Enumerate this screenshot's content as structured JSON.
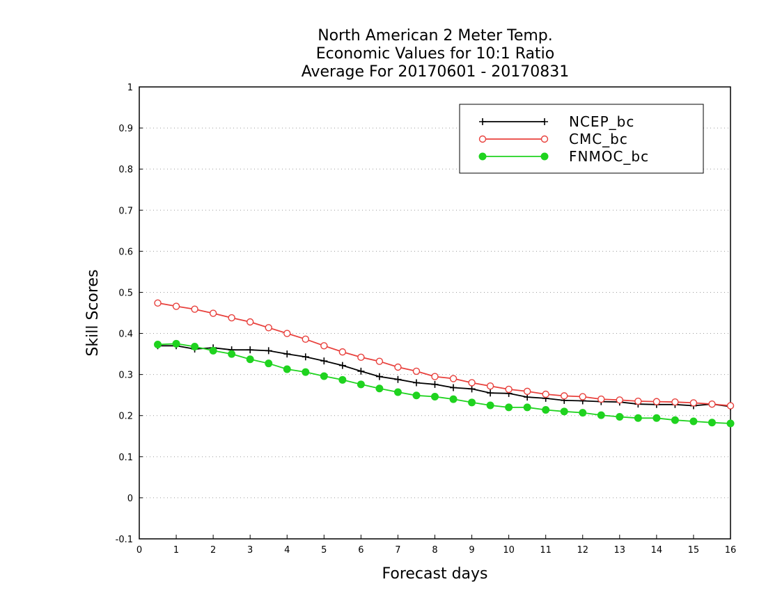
{
  "chart_data": {
    "type": "line",
    "title_lines": [
      "North American 2 Meter Temp.",
      "Economic Values for 10:1 Ratio",
      "Average For 20170601 - 20170831"
    ],
    "xlabel": "Forecast days",
    "ylabel": "Skill Scores",
    "xlim": [
      0,
      16
    ],
    "ylim": [
      -0.1,
      1
    ],
    "x_ticks": [
      0,
      1,
      2,
      3,
      4,
      5,
      6,
      7,
      8,
      9,
      10,
      11,
      12,
      13,
      14,
      15,
      16
    ],
    "x_tick_labels": [
      "0",
      "1",
      "2",
      "3",
      "4",
      "5",
      "6",
      "7",
      "8",
      "9",
      "10",
      "11",
      "12",
      "13",
      "14",
      "15",
      "16"
    ],
    "y_ticks": [
      -0.1,
      0,
      0.1,
      0.2,
      0.3,
      0.4,
      0.5,
      0.6,
      0.7,
      0.8,
      0.9,
      1
    ],
    "y_tick_labels": [
      "-0.1",
      "0",
      "0.1",
      "0.2",
      "0.3",
      "0.4",
      "0.5",
      "0.6",
      "0.7",
      "0.8",
      "0.9",
      "1"
    ],
    "grid": "horizontal-dotted",
    "legend_position": "top-right",
    "x": [
      0.5,
      1,
      1.5,
      2,
      2.5,
      3,
      3.5,
      4,
      4.5,
      5,
      5.5,
      6,
      6.5,
      7,
      7.5,
      8,
      8.5,
      9,
      9.5,
      10,
      10.5,
      11,
      11.5,
      12,
      12.5,
      13,
      13.5,
      14,
      14.5,
      15,
      15.5,
      16
    ],
    "series": [
      {
        "name": "NCEP_bc",
        "color": "#000000",
        "marker": "plus",
        "values": [
          0.37,
          0.37,
          0.362,
          0.365,
          0.36,
          0.36,
          0.358,
          0.35,
          0.343,
          0.333,
          0.322,
          0.308,
          0.295,
          0.288,
          0.28,
          0.276,
          0.268,
          0.265,
          0.255,
          0.254,
          0.245,
          0.242,
          0.237,
          0.236,
          0.234,
          0.233,
          0.228,
          0.227,
          0.227,
          0.224,
          0.228,
          0.222
        ]
      },
      {
        "name": "CMC_bc",
        "color": "#e8403c",
        "marker": "open-circle",
        "values": [
          0.474,
          0.466,
          0.459,
          0.449,
          0.438,
          0.428,
          0.414,
          0.4,
          0.386,
          0.37,
          0.355,
          0.342,
          0.332,
          0.318,
          0.308,
          0.295,
          0.29,
          0.28,
          0.272,
          0.264,
          0.259,
          0.252,
          0.248,
          0.246,
          0.24,
          0.238,
          0.235,
          0.234,
          0.233,
          0.231,
          0.228,
          0.224
        ]
      },
      {
        "name": "FNMOC_bc",
        "color": "#1fd31f",
        "marker": "filled-circle",
        "values": [
          0.373,
          0.375,
          0.368,
          0.358,
          0.35,
          0.337,
          0.327,
          0.313,
          0.306,
          0.296,
          0.287,
          0.276,
          0.266,
          0.257,
          0.249,
          0.246,
          0.24,
          0.232,
          0.225,
          0.22,
          0.22,
          0.214,
          0.21,
          0.207,
          0.201,
          0.197,
          0.194,
          0.194,
          0.189,
          0.186,
          0.183,
          0.181
        ]
      }
    ]
  }
}
